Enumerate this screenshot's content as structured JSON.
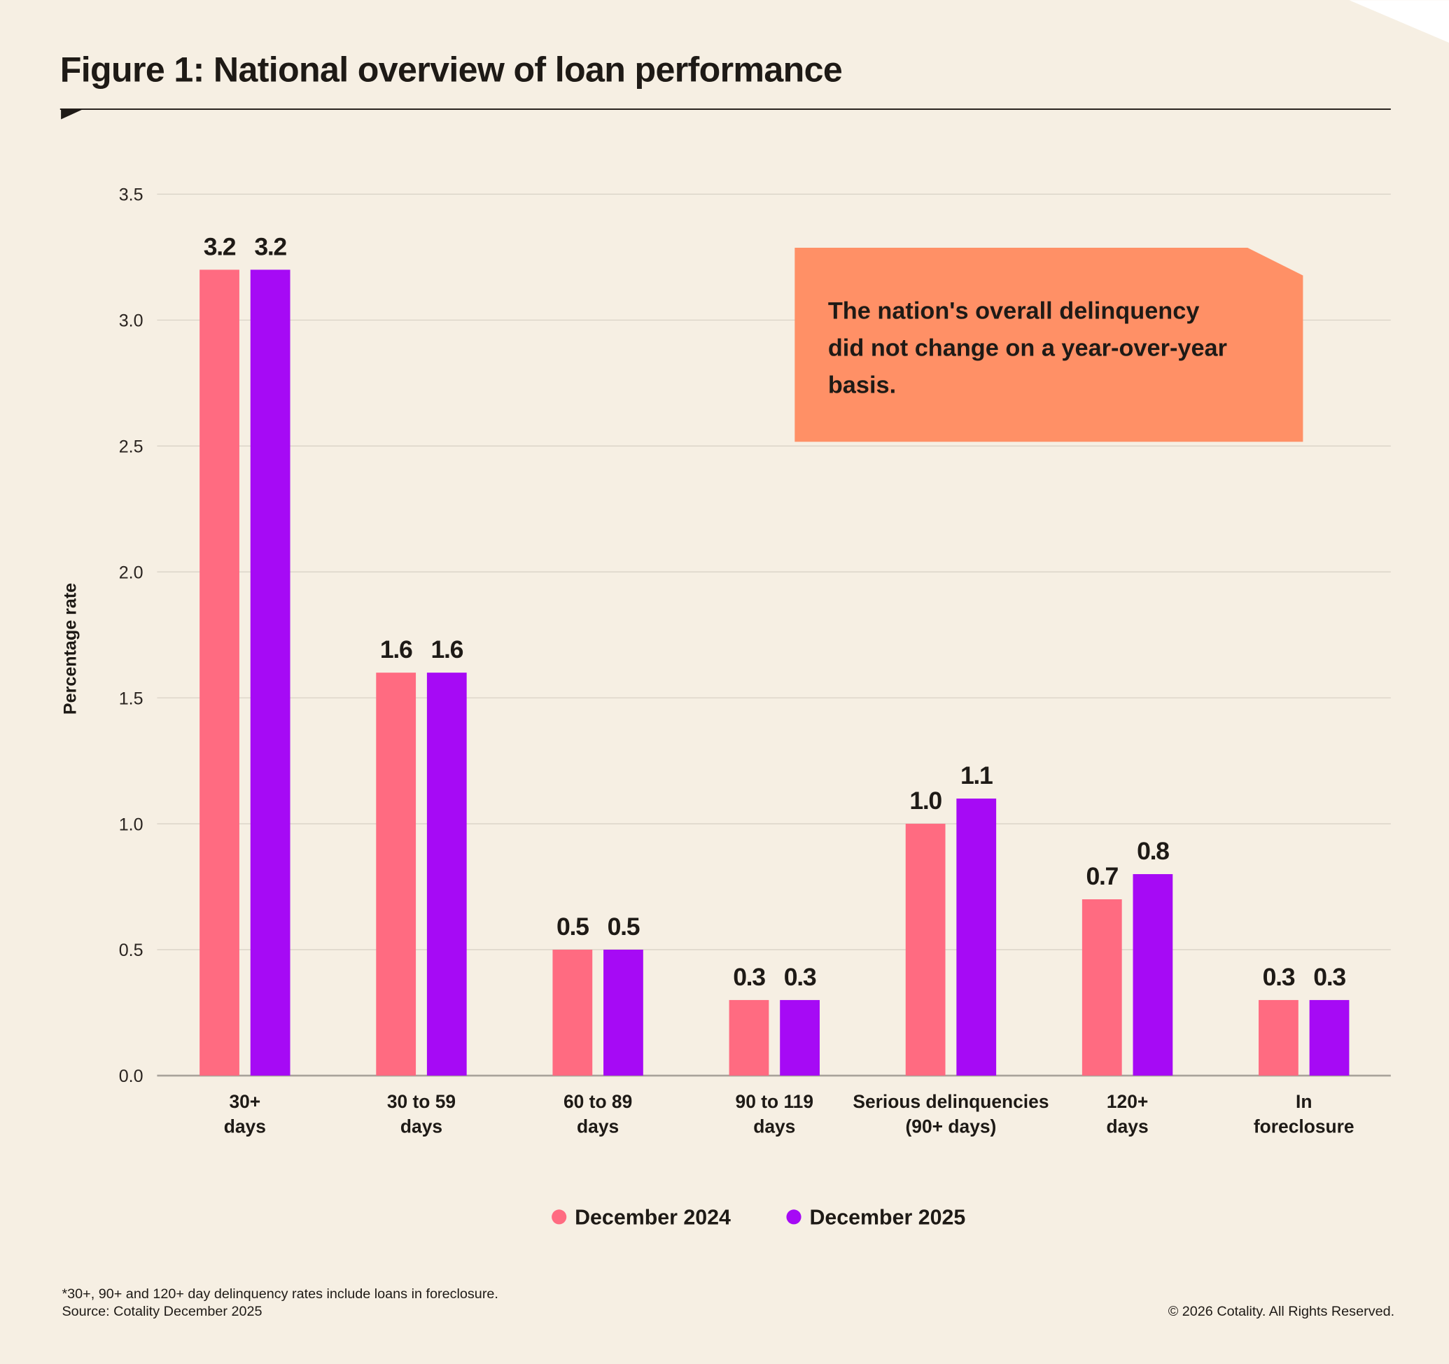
{
  "chart_data": {
    "type": "bar",
    "title": "Figure 1: National overview of loan performance",
    "ylabel": "Percentage rate",
    "xlabel": "",
    "ylim": [
      0,
      3.5
    ],
    "yticks": [
      "0.0",
      "0.5",
      "1.0",
      "1.5",
      "2.0",
      "2.5",
      "3.0",
      "3.5"
    ],
    "grid": true,
    "legend_position": "bottom",
    "categories": [
      [
        "30+",
        "days"
      ],
      [
        "30 to 59",
        "days"
      ],
      [
        "60 to 89",
        "days"
      ],
      [
        "90 to 119",
        "days"
      ],
      [
        "Serious delinquencies",
        "(90+ days)"
      ],
      [
        "120+",
        "days"
      ],
      [
        "In",
        "foreclosure"
      ]
    ],
    "series": [
      {
        "name": "December 2024",
        "color": "#ff6b81",
        "values": [
          3.2,
          1.6,
          0.5,
          0.3,
          1.0,
          0.7,
          0.3
        ]
      },
      {
        "name": "December 2025",
        "color": "#a60af5",
        "values": [
          3.2,
          1.6,
          0.5,
          0.3,
          1.1,
          0.8,
          0.3
        ]
      }
    ],
    "annotation": "The nation's overall delinquency did not change on a year-over-year basis.",
    "annotation_color": "#ff9066"
  },
  "footer": {
    "note": "*30+, 90+ and 120+ day delinquency rates include loans in foreclosure.",
    "source": "Source: Cotality December 2025",
    "copyright": "© 2026 Cotality. All Rights Reserved."
  }
}
